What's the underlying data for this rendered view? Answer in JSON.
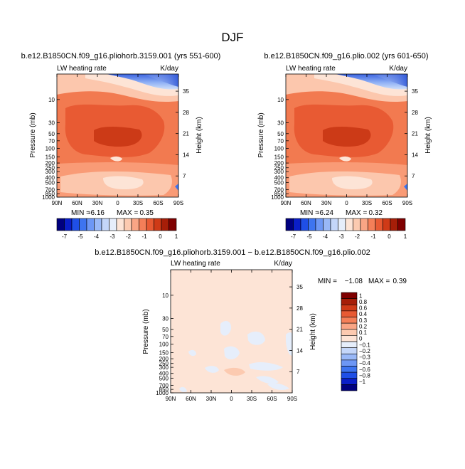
{
  "page_title": "DJF",
  "colors": {
    "warm": [
      "#fde4d6",
      "#fcc7ad",
      "#f99b76",
      "#f27a50",
      "#e85a33",
      "#cc3a17"
    ],
    "diff_scale": [
      "#00007f",
      "#0a1ec8",
      "#1f4fe6",
      "#3d74f0",
      "#6d97f5",
      "#99b8f7",
      "#c4d6f9",
      "#e6eefb",
      "#fde4d6",
      "#fccab0",
      "#f9a585",
      "#f47f58",
      "#e85a33",
      "#cf3a17",
      "#a61e08",
      "#7f0000"
    ]
  },
  "chart_data": [
    {
      "type": "contour",
      "title": "b.e12.B1850CN.f09_g16.pliohorb.3159.001 (yrs 551-600)",
      "left_label": "LW heating rate",
      "right_label": "K/day",
      "xlabel": "",
      "ylabel": "Pressure (mb)",
      "ylabel_right": "Height (km)",
      "x_ticks": [
        "90N",
        "60N",
        "30N",
        "0",
        "30S",
        "60S",
        "90S"
      ],
      "y_ticks": [
        "10",
        "30",
        "50",
        "70",
        "100",
        "150",
        "200",
        "250",
        "300",
        "400",
        "500",
        "700",
        "850",
        "1000"
      ],
      "y_pressure": [
        10,
        30,
        50,
        70,
        100,
        150,
        200,
        250,
        300,
        400,
        500,
        700,
        850,
        1000
      ],
      "right_ticks": [
        "35",
        "28",
        "21",
        "14",
        "7"
      ],
      "right_km": [
        35,
        28,
        21,
        14,
        7
      ],
      "ylim_mb": [
        1000,
        3
      ],
      "stats_min_label": "MIN =",
      "stats_min": "-6.16",
      "stats_max_label": "MAX =",
      "stats_max": "0.35",
      "colorbar_labels": [
        "-7",
        "-5",
        "-4",
        "-3",
        "-2",
        "-1",
        "0",
        "1"
      ]
    },
    {
      "type": "contour",
      "title": "b.e12.B1850CN.f09_g16.plio.002 (yrs 601-650)",
      "left_label": "LW heating rate",
      "right_label": "K/day",
      "xlabel": "",
      "ylabel": "Pressure (mb)",
      "ylabel_right": "Height (km)",
      "x_ticks": [
        "90N",
        "60N",
        "30N",
        "0",
        "30S",
        "60S",
        "90S"
      ],
      "y_ticks": [
        "10",
        "30",
        "50",
        "70",
        "100",
        "150",
        "200",
        "250",
        "300",
        "400",
        "500",
        "700",
        "850",
        "1000"
      ],
      "y_pressure": [
        10,
        30,
        50,
        70,
        100,
        150,
        200,
        250,
        300,
        400,
        500,
        700,
        850,
        1000
      ],
      "right_ticks": [
        "35",
        "28",
        "21",
        "14",
        "7"
      ],
      "right_km": [
        35,
        28,
        21,
        14,
        7
      ],
      "ylim_mb": [
        1000,
        3
      ],
      "stats_min_label": "MIN =",
      "stats_min": "-6.24",
      "stats_max_label": "MAX =",
      "stats_max": "0.32",
      "colorbar_labels": [
        "-7",
        "-5",
        "-4",
        "-3",
        "-2",
        "-1",
        "0",
        "1"
      ]
    },
    {
      "type": "contour",
      "title": "b.e12.B1850CN.f09_g16.pliohorb.3159.001 − b.e12.B1850CN.f09_g16.plio.002",
      "left_label": "LW heating rate",
      "right_label": "K/day",
      "xlabel": "",
      "ylabel": "Pressure (mb)",
      "ylabel_right": "Height (km)",
      "x_ticks": [
        "90N",
        "60N",
        "30N",
        "0",
        "30S",
        "60S",
        "90S"
      ],
      "y_ticks": [
        "10",
        "30",
        "50",
        "70",
        "100",
        "150",
        "200",
        "250",
        "300",
        "400",
        "500",
        "700",
        "850",
        "1000"
      ],
      "y_pressure": [
        10,
        30,
        50,
        70,
        100,
        150,
        200,
        250,
        300,
        400,
        500,
        700,
        850,
        1000
      ],
      "right_ticks": [
        "35",
        "28",
        "21",
        "14",
        "7"
      ],
      "right_km": [
        35,
        28,
        21,
        14,
        7
      ],
      "ylim_mb": [
        1000,
        3
      ],
      "stats_min_label": "MIN =",
      "stats_min": "−1.08",
      "stats_max_label": "MAX =",
      "stats_max": "0.39",
      "colorbar_labels": [
        "1",
        "0.8",
        "0.6",
        "0.4",
        "0.3",
        "0.2",
        "0.1",
        "0",
        "−0.1",
        "−0.2",
        "−0.3",
        "−0.4",
        "−0.6",
        "−0.8",
        "−1"
      ]
    }
  ]
}
